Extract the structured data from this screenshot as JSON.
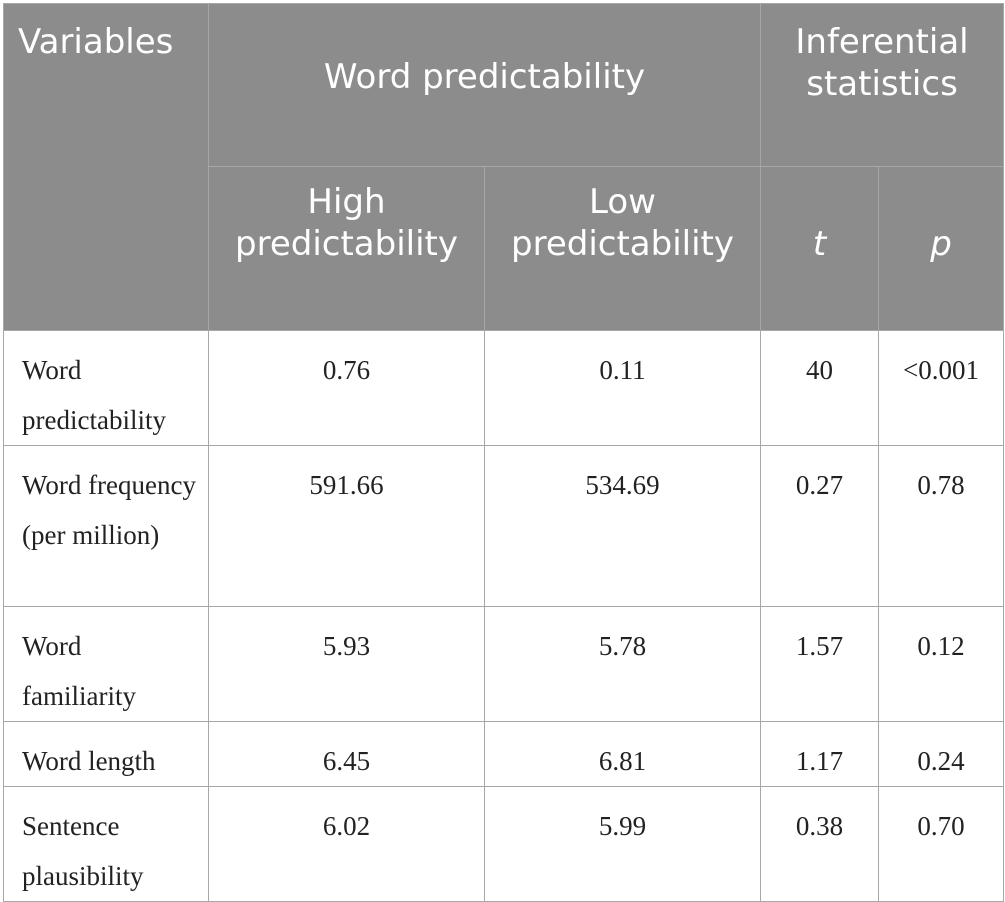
{
  "table": {
    "header": {
      "variables": "Variables",
      "group": "Word predictability",
      "inferential": "Inferential statistics",
      "high": "High predictability",
      "low": "Low predictability",
      "t": "t",
      "p": "p"
    },
    "rows": [
      {
        "variable": "Word predictability",
        "high": "0.76",
        "low": "0.11",
        "t": "40",
        "p": "<0.001"
      },
      {
        "variable": "Word frequency (per million)",
        "high": "591.66",
        "low": "534.69",
        "t": "0.27",
        "p": "0.78"
      },
      {
        "variable": "Word familiarity",
        "high": "5.93",
        "low": "5.78",
        "t": "1.57",
        "p": "0.12"
      },
      {
        "variable": "Word length",
        "high": "6.45",
        "low": "6.81",
        "t": "1.17",
        "p": "0.24"
      },
      {
        "variable": "Sentence plausibility",
        "high": "6.02",
        "low": "5.99",
        "t": "0.38",
        "p": "0.70"
      }
    ]
  }
}
